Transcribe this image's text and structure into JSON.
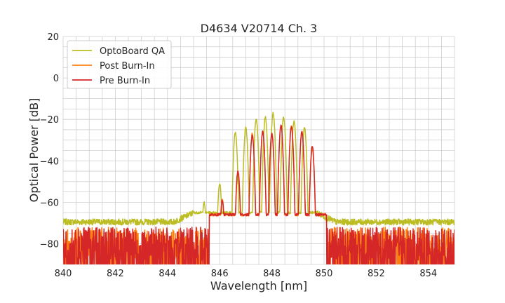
{
  "chart_data": {
    "type": "line",
    "title": "D4634 V20714 Ch. 3",
    "xlabel": "Wavelength [nm]",
    "ylabel": "Optical Power [dB]",
    "xlim": [
      840,
      855
    ],
    "ylim": [
      -90,
      20
    ],
    "xticks": [
      840,
      842,
      844,
      846,
      848,
      850,
      852,
      854
    ],
    "xtick_labels": [
      "840",
      "842",
      "844",
      "846",
      "848",
      "850",
      "852",
      "854"
    ],
    "yticks": [
      -80,
      -60,
      -40,
      -20,
      0,
      20
    ],
    "ytick_labels": [
      "−80",
      "−60",
      "−40",
      "−20",
      "0",
      "20"
    ],
    "grid": true,
    "legend_position": "top-left",
    "series": [
      {
        "name": "OptoBoard QA",
        "color": "#bcbd22",
        "noise_floor": -71,
        "spectrum_range": [
          845.0,
          849.7
        ],
        "peaks": [
          {
            "x": 845.4,
            "y": -60
          },
          {
            "x": 846.0,
            "y": -51
          },
          {
            "x": 846.6,
            "y": -26
          },
          {
            "x": 847.0,
            "y": -24
          },
          {
            "x": 847.4,
            "y": -20
          },
          {
            "x": 847.75,
            "y": -19
          },
          {
            "x": 848.05,
            "y": -17
          },
          {
            "x": 848.45,
            "y": -19
          },
          {
            "x": 848.85,
            "y": -21
          },
          {
            "x": 849.25,
            "y": -24
          }
        ]
      },
      {
        "name": "Post Burn-In",
        "color": "#ff7f0e",
        "noise_floor": -75,
        "spectrum_range": [
          845.6,
          850.1
        ],
        "peaks": [
          {
            "x": 846.1,
            "y": -58
          },
          {
            "x": 846.7,
            "y": -46
          },
          {
            "x": 847.25,
            "y": -27
          },
          {
            "x": 847.65,
            "y": -26
          },
          {
            "x": 848.0,
            "y": -27
          },
          {
            "x": 848.35,
            "y": -23
          },
          {
            "x": 848.75,
            "y": -23
          },
          {
            "x": 849.15,
            "y": -26
          },
          {
            "x": 849.55,
            "y": -34
          }
        ]
      },
      {
        "name": "Pre Burn-In",
        "color": "#d62728",
        "noise_floor": -75,
        "spectrum_range": [
          845.6,
          850.1
        ],
        "peaks": [
          {
            "x": 846.1,
            "y": -59
          },
          {
            "x": 846.7,
            "y": -45
          },
          {
            "x": 847.25,
            "y": -28
          },
          {
            "x": 847.65,
            "y": -26
          },
          {
            "x": 848.0,
            "y": -27
          },
          {
            "x": 848.35,
            "y": -23
          },
          {
            "x": 848.75,
            "y": -24
          },
          {
            "x": 849.15,
            "y": -26
          },
          {
            "x": 849.55,
            "y": -33
          }
        ]
      }
    ]
  }
}
